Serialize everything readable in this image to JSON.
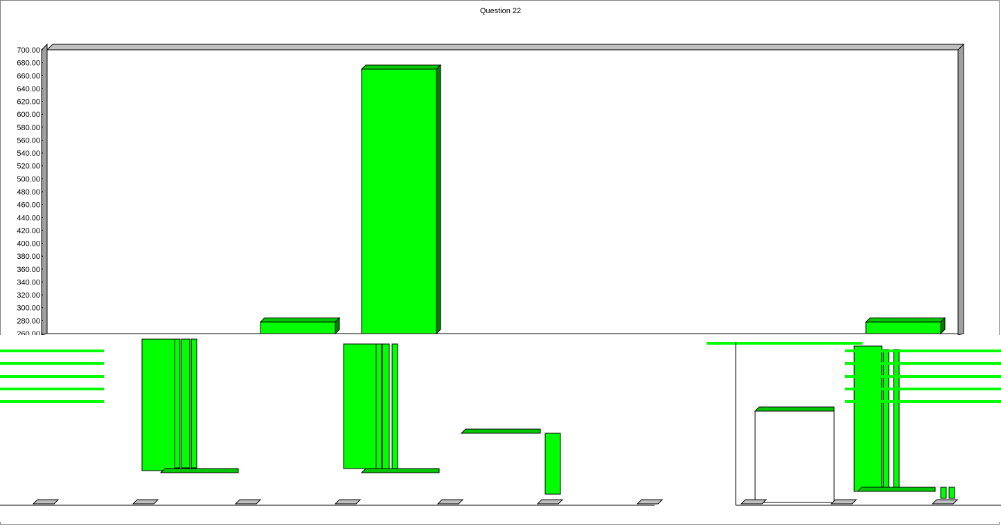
{
  "chart_data": {
    "type": "bar",
    "title": "Question 22",
    "xlabel": "",
    "ylabel": "",
    "ylim": [
      260,
      700
    ],
    "y_ticks": [
      "700.00",
      "680.00",
      "660.00",
      "640.00",
      "620.00",
      "600.00",
      "580.00",
      "560.00",
      "540.00",
      "520.00",
      "500.00",
      "480.00",
      "460.00",
      "440.00",
      "420.00",
      "400.00",
      "380.00",
      "360.00",
      "340.00",
      "320.00",
      "300.00",
      "280.00",
      "260.00"
    ],
    "bars": [
      {
        "value": 278
      },
      {
        "value": 670
      },
      {
        "value": 278
      }
    ],
    "grid": false,
    "colors": {
      "bar": "#00ff00",
      "bar_top": "#00c800",
      "bar_side": "#008000",
      "wall": "#a0a0a0",
      "outline": "#000000"
    }
  }
}
